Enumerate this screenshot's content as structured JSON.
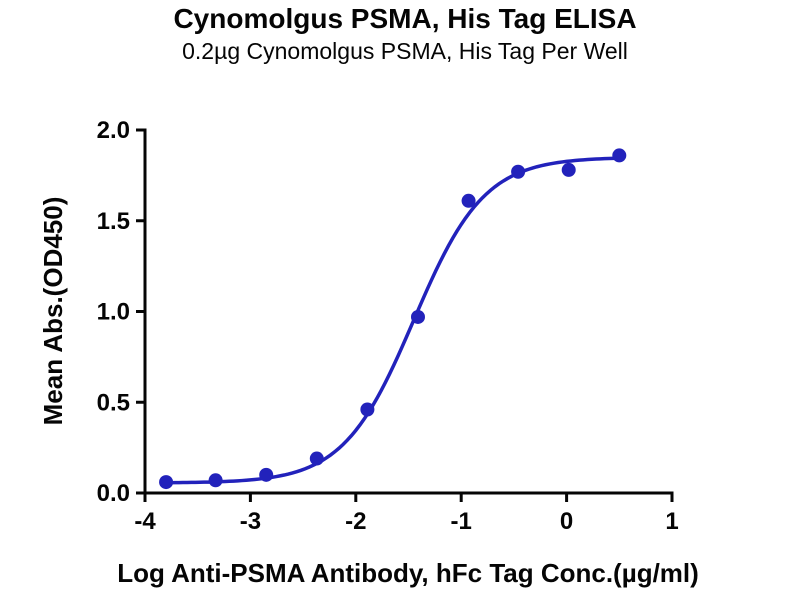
{
  "page": {
    "background": "#ffffff",
    "text_color": "#050505"
  },
  "chart_data": {
    "type": "scatter",
    "title": "Cynomolgus PSMA, His Tag ELISA",
    "subtitle": "0.2µg Cynomolgus PSMA, His Tag Per Well",
    "xlabel": "Log Anti-PSMA Antibody, hFc Tag Conc.(µg/ml)",
    "ylabel": "Mean Abs.(OD450)",
    "xlim": [
      -4,
      1
    ],
    "ylim": [
      0,
      2.0
    ],
    "x_ticks": [
      -4,
      -3,
      -2,
      -1,
      0,
      1
    ],
    "y_ticks": [
      0.0,
      0.5,
      1.0,
      1.5,
      2.0
    ],
    "grid": false,
    "legend": false,
    "color": "#2222bb",
    "axis_color": "#050505",
    "marker_radius": 7,
    "line_width": 3.5,
    "series": [
      {
        "name": "Anti-PSMA Antibody, hFc Tag",
        "x": [
          -3.8,
          -3.33,
          -2.85,
          -2.37,
          -1.89,
          -1.41,
          -0.93,
          -0.46,
          0.02,
          0.5
        ],
        "y": [
          0.06,
          0.07,
          0.1,
          0.19,
          0.46,
          0.97,
          1.61,
          1.77,
          1.78,
          1.86
        ]
      }
    ],
    "fit": {
      "model": "4PL",
      "bottom": 0.055,
      "top": 1.85,
      "log_ec50": -1.45,
      "hill": 1.3,
      "curve_x_start": -3.8,
      "curve_x_end": 0.5
    }
  }
}
